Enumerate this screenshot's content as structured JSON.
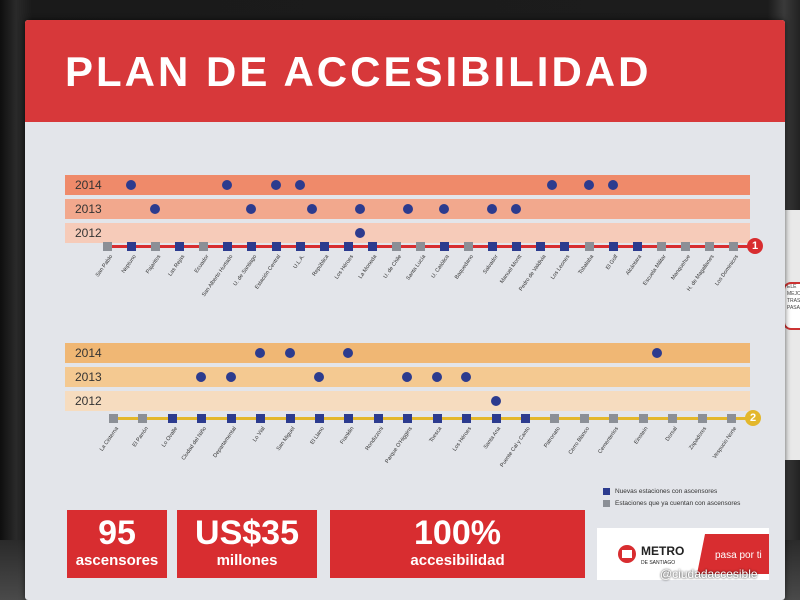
{
  "title": "PLAN DE ACCESIBILIDAD",
  "lines": [
    {
      "number": "1",
      "years": [
        {
          "label": "2014",
          "color": "#ef8a6a",
          "dots": [
            2,
            10,
            14,
            16,
            37,
            40,
            42
          ]
        },
        {
          "label": "2013",
          "color": "#f2a88d",
          "dots": [
            4,
            12,
            17,
            21,
            25,
            28,
            32,
            34
          ]
        },
        {
          "label": "2012",
          "color": "#f6cbb9",
          "dots": [
            21
          ]
        }
      ],
      "line_color": "#d82d30",
      "stations": [
        {
          "name": "San Pablo",
          "new": false
        },
        {
          "name": "Neptuno",
          "new": true
        },
        {
          "name": "Pajaritos",
          "new": false
        },
        {
          "name": "Las Rejas",
          "new": true
        },
        {
          "name": "Ecuador",
          "new": false
        },
        {
          "name": "San Alberto Hurtado",
          "new": true
        },
        {
          "name": "U. de Santiago",
          "new": true
        },
        {
          "name": "Estación Central",
          "new": true
        },
        {
          "name": "U.L.A.",
          "new": true
        },
        {
          "name": "República",
          "new": true
        },
        {
          "name": "Los Héroes",
          "new": true
        },
        {
          "name": "La Moneda",
          "new": true
        },
        {
          "name": "U. de Chile",
          "new": false
        },
        {
          "name": "Santa Lucía",
          "new": false
        },
        {
          "name": "U. Católica",
          "new": true
        },
        {
          "name": "Baquedano",
          "new": false
        },
        {
          "name": "Salvador",
          "new": true
        },
        {
          "name": "Manuel Montt",
          "new": true
        },
        {
          "name": "Pedro de Valdivia",
          "new": true
        },
        {
          "name": "Los Leones",
          "new": true
        },
        {
          "name": "Tobalaba",
          "new": false
        },
        {
          "name": "El Golf",
          "new": true
        },
        {
          "name": "Alcántara",
          "new": true
        },
        {
          "name": "Escuela Militar",
          "new": false
        },
        {
          "name": "Manquehue",
          "new": false
        },
        {
          "name": "H. de Magallanes",
          "new": false
        },
        {
          "name": "Los Dominicos",
          "new": false
        }
      ]
    },
    {
      "number": "2",
      "years": [
        {
          "label": "2014",
          "color": "#f0b774",
          "dots": [
            10,
            12,
            16,
            37
          ]
        },
        {
          "label": "2013",
          "color": "#f4c991",
          "dots": [
            6,
            8,
            14,
            20,
            22,
            24
          ]
        },
        {
          "label": "2012",
          "color": "#f6dcbf",
          "dots": [
            26
          ]
        }
      ],
      "line_color": "#e3b72b",
      "stations": [
        {
          "name": "La Cisterna",
          "new": false
        },
        {
          "name": "El Parrón",
          "new": false
        },
        {
          "name": "Lo Ovalle",
          "new": true
        },
        {
          "name": "Ciudad del Niño",
          "new": true
        },
        {
          "name": "Departamental",
          "new": true
        },
        {
          "name": "Lo Vial",
          "new": true
        },
        {
          "name": "San Miguel",
          "new": true
        },
        {
          "name": "El Llano",
          "new": true
        },
        {
          "name": "Franklin",
          "new": true
        },
        {
          "name": "Rondizzoni",
          "new": true
        },
        {
          "name": "Parque O'Higgins",
          "new": true
        },
        {
          "name": "Toesca",
          "new": true
        },
        {
          "name": "Los Héroes",
          "new": true
        },
        {
          "name": "Santa Ana",
          "new": true
        },
        {
          "name": "Puente Cal y Canto",
          "new": true
        },
        {
          "name": "Patronato",
          "new": false
        },
        {
          "name": "Cerro Blanco",
          "new": false
        },
        {
          "name": "Cementerios",
          "new": false
        },
        {
          "name": "Einstein",
          "new": false
        },
        {
          "name": "Dorsal",
          "new": false
        },
        {
          "name": "Zapadores",
          "new": false
        },
        {
          "name": "Vespucio Norte",
          "new": false
        }
      ]
    }
  ],
  "legend": [
    {
      "label": "Nuevas estaciones con ascensores",
      "color": "#2c3b8e"
    },
    {
      "label": "Estaciones que ya cuentan con ascensores",
      "color": "#8b8f96"
    }
  ],
  "stats": [
    {
      "big": "95",
      "small": "ascensores"
    },
    {
      "big": "US$35",
      "small": "millones"
    },
    {
      "big": "100%",
      "small": "accesibilidad"
    }
  ],
  "logo": {
    "name": "METRO",
    "sub": "DE SANTIAGO",
    "tagline": "pasa por ti"
  },
  "watermark": "@ciudadaccesible",
  "right_sign_text": "ELE MEJO TRAS PASA"
}
